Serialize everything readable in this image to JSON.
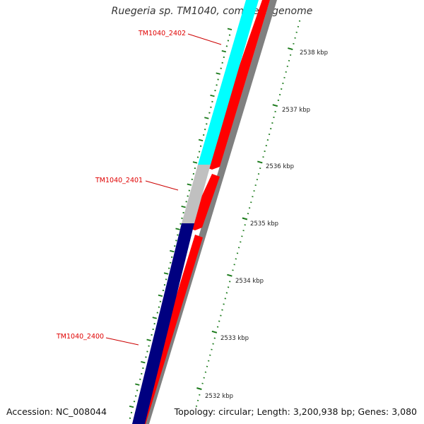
{
  "title": "Ruegeria sp. TM1040, complete genome",
  "accession": "Accession: NC_008044",
  "stats": "Topology: circular; Length: 3,200,938 bp; Genes: 3,080",
  "colors": {
    "label_red": "#e00000",
    "tick_green": "#1a7a1a",
    "track_cyan": "#00ffff",
    "track_navy": "#000080",
    "track_grey": "#c0c0c0",
    "track_red": "#ff0000",
    "backbone": "#808080"
  },
  "genes": [
    {
      "id": "TM1040_2402",
      "label": "TM1040_2402",
      "color": "cyan"
    },
    {
      "id": "TM1040_2401",
      "label": "TM1040_2401",
      "color": "grey"
    },
    {
      "id": "TM1040_2400",
      "label": "TM1040_2400",
      "color": "navy"
    }
  ],
  "scale_labels": [
    "2538 kbp",
    "2537 kbp",
    "2536 kbp",
    "2535 kbp",
    "2534 kbp",
    "2533 kbp",
    "2532 kbp"
  ]
}
